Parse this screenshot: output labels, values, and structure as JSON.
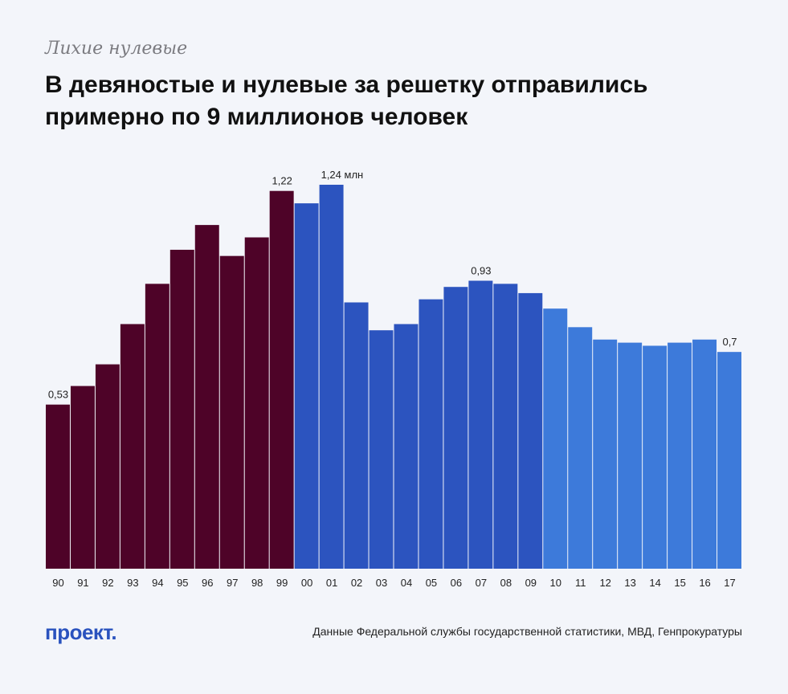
{
  "header": {
    "kicker": "Лихие нулевые",
    "title": "В девяностые и нулевые за решетку отправились примерно по 9 миллионов человек"
  },
  "footer": {
    "logo": "проект.",
    "source": "Данные Федеральной службы государственной статистики, МВД, Генпрокуратуры"
  },
  "chart_data": {
    "type": "bar",
    "title": "",
    "xlabel": "",
    "ylabel": "",
    "unit": "млн",
    "ylim": [
      0,
      1.24
    ],
    "grid": false,
    "categories": [
      "90",
      "91",
      "92",
      "93",
      "94",
      "95",
      "96",
      "97",
      "98",
      "99",
      "00",
      "01",
      "02",
      "03",
      "04",
      "05",
      "06",
      "07",
      "08",
      "09",
      "10",
      "11",
      "12",
      "13",
      "14",
      "15",
      "16",
      "17"
    ],
    "values": [
      0.53,
      0.59,
      0.66,
      0.79,
      0.92,
      1.03,
      1.11,
      1.01,
      1.07,
      1.22,
      1.18,
      1.24,
      0.86,
      0.77,
      0.79,
      0.87,
      0.91,
      0.93,
      0.92,
      0.89,
      0.84,
      0.78,
      0.74,
      0.73,
      0.72,
      0.73,
      0.74,
      0.7
    ],
    "colors": {
      "1990s": "#4e0328",
      "2000s": "#2c54bf",
      "2010s": "#3d7ada"
    },
    "data_labels": [
      {
        "category": "90",
        "text": "0,53"
      },
      {
        "category": "99",
        "text": "1,22"
      },
      {
        "category": "01",
        "text": "1,24 млн"
      },
      {
        "category": "07",
        "text": "0,93"
      },
      {
        "category": "17",
        "text": "0,7"
      }
    ]
  }
}
